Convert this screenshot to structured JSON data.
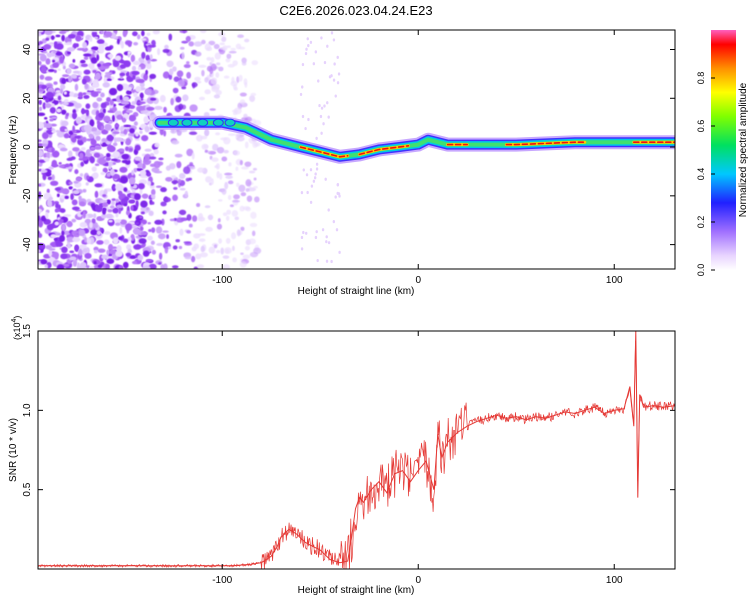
{
  "title": "C2E6.2026.023.04.24.E23",
  "chart_data": [
    {
      "type": "heatmap",
      "xlabel": "Height of straight line (km)",
      "ylabel": "Frequency (Hz)",
      "xlim": [
        -194,
        131
      ],
      "ylim": [
        -50,
        48
      ],
      "x_ticks": [
        -100,
        0,
        100
      ],
      "y_ticks": [
        -40,
        -20,
        0,
        20,
        40
      ],
      "colorbar": {
        "label": "Normalized spectral amplitude",
        "range": [
          0,
          1
        ],
        "ticks": [
          0.0,
          0.2,
          0.4,
          0.6,
          0.8
        ],
        "tick_labels": [
          "0.0",
          "0.2",
          "0.4",
          "0.6",
          "0.8"
        ]
      },
      "dominant_frequency_track": {
        "x": [
          -132,
          -112,
          -100,
          -88,
          -75,
          -60,
          -50,
          -40,
          -30,
          -20,
          -10,
          0,
          5,
          15,
          30,
          50,
          80,
          100,
          131
        ],
        "y": [
          10,
          10,
          10,
          8,
          3,
          0,
          -2,
          -4,
          -3,
          -1,
          0,
          1,
          3,
          1,
          1,
          1,
          2,
          2,
          2
        ]
      },
      "noise_region_x": [
        -194,
        -82
      ]
    },
    {
      "type": "line",
      "xlabel": "Height of straight line (km)",
      "ylabel": "SNR (10 * v/v)",
      "scale_label": "(x10",
      "scale_exp": "4",
      "xlim": [
        -194,
        131
      ],
      "ylim": [
        0,
        1.5
      ],
      "x_ticks": [
        -100,
        0,
        100
      ],
      "y_ticks": [
        0.5,
        1.0,
        1.5
      ],
      "y_tick_labels": [
        "0.5",
        "1.0",
        "1.5"
      ],
      "series": [
        {
          "name": "SNR",
          "color": "#e53935",
          "x": [
            -194,
            -170,
            -150,
            -130,
            -110,
            -95,
            -85,
            -80,
            -75,
            -72,
            -70,
            -66,
            -62,
            -58,
            -55,
            -50,
            -45,
            -40,
            -36,
            -34,
            -32,
            -30,
            -28,
            -24,
            -20,
            -16,
            -12,
            -8,
            -4,
            0,
            4,
            8,
            10,
            12,
            15,
            20,
            25,
            30,
            35,
            40,
            45,
            50,
            55,
            60,
            65,
            70,
            75,
            80,
            85,
            90,
            95,
            100,
            105,
            108,
            110,
            111,
            112,
            113,
            115,
            120,
            125,
            131
          ],
          "y": [
            0.02,
            0.02,
            0.02,
            0.02,
            0.02,
            0.02,
            0.03,
            0.04,
            0.08,
            0.14,
            0.2,
            0.25,
            0.22,
            0.17,
            0.15,
            0.12,
            0.06,
            0.04,
            0.05,
            0.2,
            0.38,
            0.45,
            0.42,
            0.5,
            0.55,
            0.48,
            0.6,
            0.62,
            0.55,
            0.62,
            0.68,
            0.5,
            0.85,
            0.7,
            0.8,
            0.86,
            0.9,
            0.93,
            0.95,
            0.97,
            0.95,
            0.96,
            0.94,
            0.96,
            0.95,
            0.97,
            0.99,
            0.98,
            1.0,
            1.02,
            0.98,
            1.0,
            1.01,
            1.15,
            0.9,
            1.5,
            0.45,
            1.1,
            1.02,
            1.03,
            1.02,
            1.03
          ]
        }
      ]
    }
  ]
}
